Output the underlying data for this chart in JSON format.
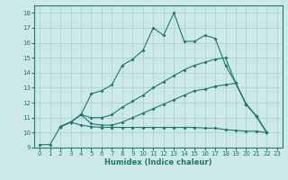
{
  "bg_color": "#cde8e8",
  "grid_color": "#aacece",
  "line_color": "#1a7a6e",
  "xlabel": "Humidex (Indice chaleur)",
  "xlim": [
    -0.5,
    23.5
  ],
  "ylim": [
    9,
    18.5
  ],
  "xticks": [
    0,
    1,
    2,
    3,
    4,
    5,
    6,
    7,
    8,
    9,
    10,
    11,
    12,
    13,
    14,
    15,
    16,
    17,
    18,
    19,
    20,
    21,
    22,
    23
  ],
  "yticks": [
    9,
    10,
    11,
    12,
    13,
    14,
    15,
    16,
    17,
    18
  ],
  "line1_x": [
    0,
    1,
    2,
    3,
    4,
    5,
    6,
    7,
    8,
    9,
    10,
    11,
    12,
    13,
    14,
    15,
    16,
    17,
    18,
    19,
    20,
    21,
    22
  ],
  "line1_y": [
    9.2,
    9.2,
    10.4,
    10.7,
    11.2,
    12.6,
    12.8,
    13.2,
    14.5,
    14.9,
    15.5,
    17.0,
    16.5,
    18.0,
    16.1,
    16.1,
    16.5,
    16.3,
    14.5,
    13.3,
    11.9,
    11.1,
    10.0
  ],
  "line2_x": [
    2,
    3,
    4,
    5,
    6,
    7,
    8,
    9,
    10,
    11,
    12,
    13,
    14,
    15,
    16,
    17,
    18,
    19,
    20,
    21,
    22
  ],
  "line2_y": [
    10.4,
    10.7,
    11.2,
    11.0,
    11.0,
    11.2,
    11.7,
    12.1,
    12.5,
    13.0,
    13.4,
    13.8,
    14.2,
    14.5,
    14.7,
    14.9,
    15.0,
    13.3,
    11.9,
    11.1,
    10.0
  ],
  "line3_x": [
    2,
    3,
    4,
    5,
    6,
    7,
    8,
    9,
    10,
    11,
    12,
    13,
    14,
    15,
    16,
    17,
    18,
    19,
    20,
    21,
    22
  ],
  "line3_y": [
    10.4,
    10.7,
    11.2,
    10.6,
    10.5,
    10.5,
    10.7,
    11.0,
    11.3,
    11.6,
    11.9,
    12.2,
    12.5,
    12.8,
    12.9,
    13.1,
    13.2,
    13.3,
    11.9,
    11.1,
    10.0
  ],
  "line4_x": [
    2,
    3,
    4,
    5,
    6,
    7,
    8,
    9,
    10,
    11,
    12,
    13,
    14,
    15,
    16,
    17,
    18,
    19,
    20,
    21,
    22
  ],
  "line4_y": [
    10.4,
    10.7,
    10.5,
    10.4,
    10.35,
    10.35,
    10.35,
    10.35,
    10.35,
    10.35,
    10.35,
    10.35,
    10.35,
    10.35,
    10.3,
    10.3,
    10.2,
    10.15,
    10.1,
    10.1,
    10.0
  ]
}
